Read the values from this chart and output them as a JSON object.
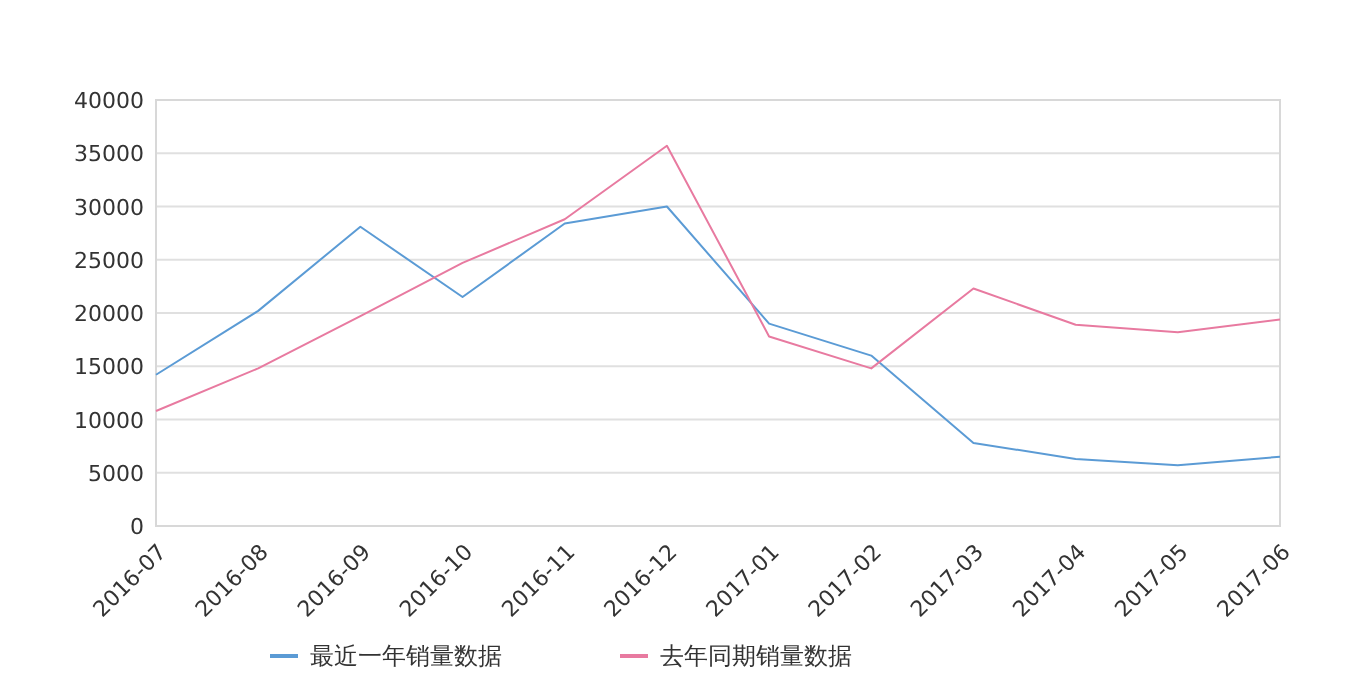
{
  "chart_data": {
    "type": "line",
    "categories": [
      "2016-07",
      "2016-08",
      "2016-09",
      "2016-10",
      "2016-11",
      "2016-12",
      "2017-01",
      "2017-02",
      "2017-03",
      "2017-04",
      "2017-05",
      "2017-06"
    ],
    "series": [
      {
        "name": "最近一年销量数据",
        "color": "#5b9bd5",
        "values": [
          14200,
          20200,
          28100,
          21500,
          28400,
          30000,
          19000,
          16000,
          7800,
          6300,
          5700,
          6500
        ]
      },
      {
        "name": "去年同期销量数据",
        "color": "#e87aa0",
        "values": [
          10800,
          14800,
          19700,
          24700,
          28800,
          35700,
          17800,
          14800,
          22300,
          18900,
          18200,
          19400
        ]
      }
    ],
    "ylim": [
      0,
      40000
    ],
    "yticks": [
      0,
      5000,
      10000,
      15000,
      20000,
      25000,
      30000,
      35000,
      40000
    ],
    "grid": "y",
    "legend": "bottom",
    "marker": "none",
    "line_style": "solid"
  }
}
